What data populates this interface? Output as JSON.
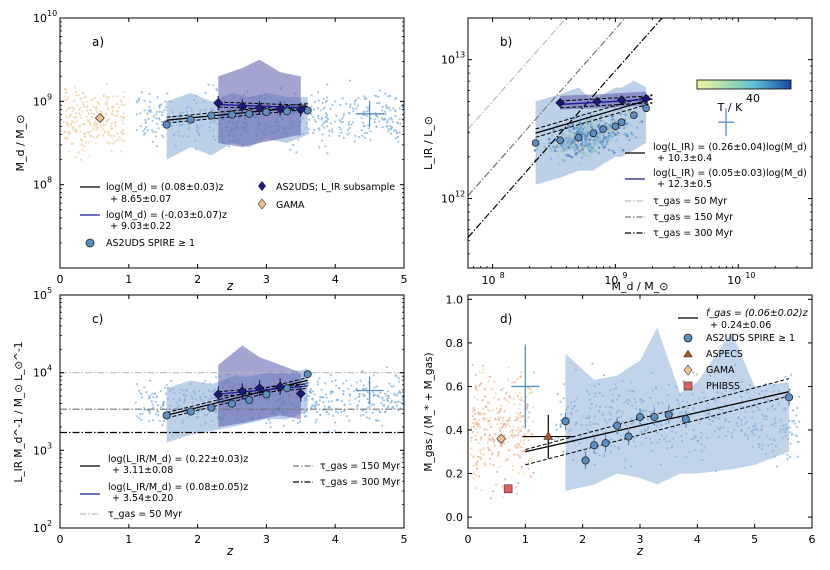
{
  "chart_data": [
    {
      "type": "scatter",
      "panel_label": "a)",
      "xlabel": "z",
      "ylabel": "M_d / M_⊙",
      "xlim": [
        0,
        5
      ],
      "ylim_log10": [
        7,
        10
      ],
      "xticks": [
        "0",
        "1",
        "2",
        "3",
        "4",
        "5"
      ],
      "yticks": [
        {
          "exp": "8",
          "v": 8
        },
        {
          "exp": "9",
          "v": 9
        },
        {
          "exp": "10",
          "v": 10
        }
      ],
      "binned": {
        "name": "AS2UDS SPIRE ≥ 1",
        "x": [
          1.55,
          1.9,
          2.2,
          2.5,
          2.75,
          3.0,
          3.3,
          3.6
        ],
        "y_log": [
          8.72,
          8.78,
          8.83,
          8.84,
          8.85,
          8.87,
          8.88,
          8.89
        ],
        "band_lo": [
          8.3,
          8.45,
          8.35,
          8.5,
          8.45,
          8.55,
          8.5,
          8.6
        ],
        "band_hi": [
          9.0,
          9.1,
          9.0,
          9.1,
          9.05,
          9.1,
          9.05,
          9.05
        ]
      },
      "subsample": {
        "name": "AS2UDS; L_IR subsample",
        "x": [
          2.3,
          2.65,
          2.9,
          3.2,
          3.5
        ],
        "y_log": [
          8.98,
          8.94,
          8.92,
          8.91,
          8.9
        ],
        "band_lo": [
          8.5,
          8.45,
          8.5,
          8.55,
          8.6
        ],
        "band_hi": [
          9.3,
          9.4,
          9.5,
          9.35,
          9.3
        ]
      },
      "gama": {
        "name": "GAMA",
        "x": 0.58,
        "y_log": 8.8
      },
      "error_cross": {
        "x": 4.5,
        "y_log": 8.85
      },
      "legend": {
        "fit1": [
          "log(M_d) = (0.08±0.03)z",
          "+ 8.65±0.07"
        ],
        "fit2": [
          "log(M_d) = (-0.03±0.07)z",
          "+ 9.03±0.22"
        ],
        "spire": "AS2UDS SPIRE ≥ 1",
        "subsample": "AS2UDS; L_IR subsample",
        "gama": "GAMA"
      }
    },
    {
      "type": "scatter",
      "panel_label": "b)",
      "xlabel": "M_d / M_⊙",
      "ylabel": "L_IR / L_⊙",
      "xlim_log10": [
        7.8,
        10.6
      ],
      "ylim_log10": [
        11.5,
        13.3
      ],
      "xticks": [
        {
          "exp": "8",
          "v": 8
        },
        {
          "exp": "9",
          "v": 9
        },
        {
          "exp": "10",
          "v": 10
        }
      ],
      "yticks": [
        {
          "exp": "12",
          "v": 12
        },
        {
          "exp": "13",
          "v": 13
        }
      ],
      "binned": {
        "x_log": [
          8.35,
          8.55,
          8.7,
          8.82,
          8.9,
          9.0,
          9.05,
          9.15,
          9.25
        ],
        "y_log": [
          12.4,
          12.42,
          12.44,
          12.47,
          12.5,
          12.52,
          12.55,
          12.6,
          12.65
        ],
        "band_lo": [
          12.1,
          12.15,
          12.2,
          12.2,
          12.25,
          12.3,
          12.3,
          12.35,
          12.4
        ],
        "band_hi": [
          12.7,
          12.75,
          12.8,
          12.7,
          12.75,
          12.8,
          12.8,
          12.85,
          12.8
        ]
      },
      "subsample": {
        "x_log": [
          8.55,
          8.85,
          9.05,
          9.25
        ],
        "y_log": [
          12.69,
          12.7,
          12.71,
          12.72
        ]
      },
      "tau_lines": [
        {
          "label": "τ_gas = 50 Myr",
          "style": "dashdot-light",
          "offset": 4.7
        },
        {
          "label": "τ_gas = 150 Myr",
          "style": "dashdot-mid",
          "offset": 4.22
        },
        {
          "label": "τ_gas = 300 Myr",
          "style": "dashdot-dark",
          "offset": 3.92
        }
      ],
      "colorbar": {
        "label": "T / K",
        "tick": "40"
      },
      "error_cross": {
        "x_log": 9.9,
        "y_log": 12.55
      },
      "legend": {
        "fit1": [
          "log(L_IR) = (0.26±0.04)log(M_d)",
          "+ 10.3±0.4"
        ],
        "fit2": [
          "log(L_IR) = (0.05±0.03)log(M_d)",
          "+ 12.3±0.5"
        ],
        "tau50": "τ_gas = 50 Myr",
        "tau150": "τ_gas = 150 Myr",
        "tau300": "τ_gas = 300 Myr"
      }
    },
    {
      "type": "scatter",
      "panel_label": "c)",
      "xlabel": "z",
      "ylabel": "L_IR M_d^-1 / M_⊙ L_⊙^-1",
      "xlim": [
        0,
        5
      ],
      "ylim_log10": [
        2,
        5
      ],
      "xticks": [
        "0",
        "1",
        "2",
        "3",
        "4",
        "5"
      ],
      "yticks": [
        {
          "exp": "2",
          "v": 2
        },
        {
          "exp": "3",
          "v": 3
        },
        {
          "exp": "4",
          "v": 4
        },
        {
          "exp": "5",
          "v": 5
        }
      ],
      "binned": {
        "x": [
          1.55,
          1.9,
          2.2,
          2.5,
          2.75,
          3.0,
          3.3,
          3.6
        ],
        "y_log": [
          3.45,
          3.5,
          3.55,
          3.6,
          3.65,
          3.72,
          3.8,
          3.98
        ],
        "band_lo": [
          3.1,
          3.2,
          3.25,
          3.3,
          3.35,
          3.4,
          3.4,
          3.5
        ],
        "band_hi": [
          3.8,
          3.9,
          3.85,
          3.95,
          3.95,
          4.0,
          4.0,
          4.05
        ]
      },
      "subsample": {
        "x": [
          2.3,
          2.65,
          2.9,
          3.2,
          3.5
        ],
        "y_log": [
          3.72,
          3.76,
          3.8,
          3.82,
          3.73
        ],
        "band_lo": [
          3.3,
          3.35,
          3.4,
          3.45,
          3.4
        ],
        "band_hi": [
          4.1,
          4.35,
          4.2,
          4.1,
          4.0
        ]
      },
      "tau_hlines": [
        {
          "label": "τ_gas = 50 Myr",
          "y_log": 4.0,
          "style": "dashdot-light"
        },
        {
          "label": "τ_gas = 150 Myr",
          "y_log": 3.53,
          "style": "dashdot-mid"
        },
        {
          "label": "τ_gas = 300 Myr",
          "y_log": 3.23,
          "style": "dashdot-dark"
        }
      ],
      "error_cross": {
        "x": 4.5,
        "y_log": 3.77
      },
      "legend": {
        "fit1": [
          "log(L_IR/M_d) = (0.22±0.03)z",
          "+ 3.11±0.08"
        ],
        "fit2": [
          "log(L_IR/M_d) = (0.08±0.05)z",
          "+ 3.54±0.20"
        ],
        "tau50": "τ_gas = 50 Myr",
        "tau150": "τ_gas = 150 Myr",
        "tau300": "τ_gas = 300 Myr"
      }
    },
    {
      "type": "scatter",
      "panel_label": "d)",
      "xlabel": "z",
      "ylabel": "M_gas / (M_* + M_gas)",
      "xlim": [
        0,
        6
      ],
      "ylim": [
        -0.05,
        1.02
      ],
      "xticks": [
        "0",
        "1",
        "2",
        "3",
        "4",
        "5",
        "6"
      ],
      "yticks": [
        "0.0",
        "0.2",
        "0.4",
        "0.6",
        "0.8",
        "1.0"
      ],
      "binned": {
        "x": [
          1.7,
          2.05,
          2.2,
          2.4,
          2.6,
          2.8,
          3.0,
          3.25,
          3.5,
          3.8,
          5.6
        ],
        "y": [
          0.44,
          0.26,
          0.33,
          0.34,
          0.42,
          0.37,
          0.46,
          0.46,
          0.47,
          0.45,
          0.55
        ],
        "band_x": [
          1.7,
          2.2,
          2.6,
          3.0,
          3.3,
          3.7,
          4.0,
          4.6,
          5.0,
          5.6
        ],
        "band_lo": [
          0.12,
          0.15,
          0.2,
          0.18,
          0.15,
          0.2,
          0.2,
          0.22,
          0.24,
          0.3
        ],
        "band_hi": [
          0.75,
          0.63,
          0.65,
          0.72,
          0.87,
          0.57,
          0.62,
          0.85,
          0.6,
          0.62
        ]
      },
      "aspecs": {
        "name": "ASPECS",
        "x": 1.4,
        "y": 0.37
      },
      "gama": {
        "name": "GAMA",
        "x": 0.58,
        "y": 0.36
      },
      "phibss": {
        "name": "PHIBSS",
        "x": 0.7,
        "y": 0.13
      },
      "error_cross": {
        "x": 1.0,
        "y": 0.6
      },
      "legend": {
        "fit1": [
          "f_gas = (0.06±0.02)z",
          "+ 0.24±0.06"
        ],
        "spire": "AS2UDS SPIRE ≥ 1",
        "aspecs": "ASPECS",
        "gama": "GAMA",
        "phibss": "PHIBSS"
      }
    }
  ],
  "colors": {
    "spire": "#5b8fc4",
    "band": "#8fb0d8",
    "subsample": "#1a1a7a",
    "subband": "#5a5aaa",
    "gama": "#f0c090",
    "aspecs": "#a0522d",
    "phibss": "#e06060",
    "scatter_blue": "#7fb0e0",
    "scatter_orange": "#f2d7b0",
    "fit_blue": "#1a1a9a"
  }
}
